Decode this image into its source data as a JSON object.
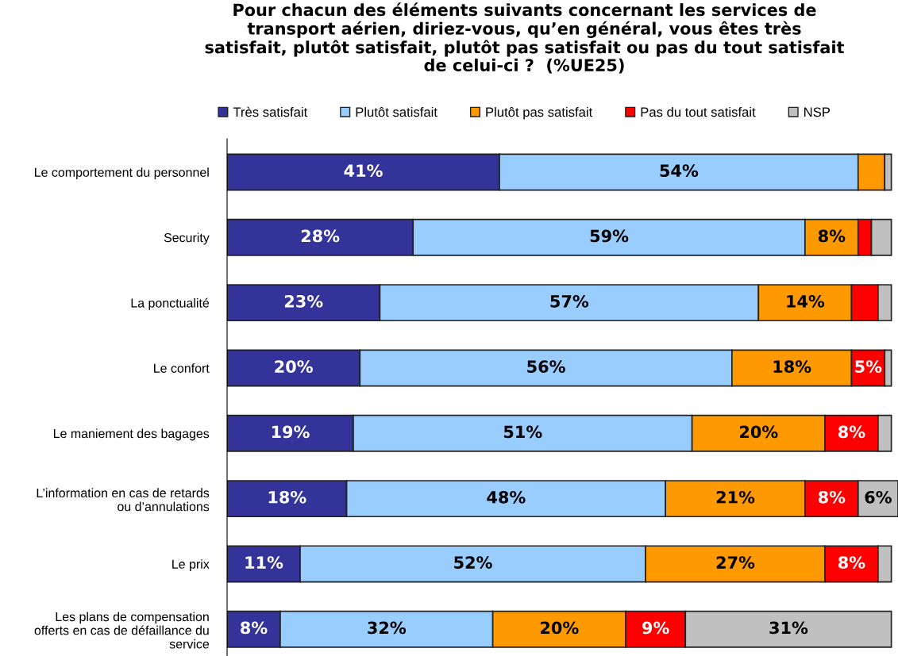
{
  "chart_data": {
    "type": "bar",
    "orientation": "horizontal",
    "stacked": true,
    "title": "Pour chacun des éléments suivants concernant les services de\ntransport aérien, diriez-vous, qu’en général, vous êtes très\nsatisfait, plutôt satisfait, plutôt pas satisfait ou pas du tout satisfait\nde celui-ci ?  (%UE25)",
    "categories": [
      "Le comportement du personnel",
      "Security",
      "La ponctualité",
      "Le confort",
      "Le maniement des bagages",
      "L’information en cas de retards\nou d’annulations",
      "Le prix",
      "Les plans de compensation\nofferts en cas de défaillance du\nservice"
    ],
    "series": [
      {
        "name": "Très satisfait",
        "color": "#333399",
        "values": [
          41,
          28,
          23,
          20,
          19,
          18,
          11,
          8
        ],
        "value_labels": [
          "41%",
          "28%",
          "23%",
          "20%",
          "19%",
          "18%",
          "11%",
          "8%"
        ]
      },
      {
        "name": "Plutôt satisfait",
        "color": "#99ccff",
        "values": [
          54,
          59,
          57,
          56,
          51,
          48,
          52,
          32
        ],
        "value_labels": [
          "54%",
          "59%",
          "57%",
          "56%",
          "51%",
          "48%",
          "52%",
          "32%"
        ]
      },
      {
        "name": "Plutôt pas satisfait",
        "color": "#ff9900",
        "values": [
          4,
          8,
          14,
          18,
          20,
          21,
          27,
          20
        ],
        "value_labels": [
          null,
          "8%",
          "14%",
          "18%",
          "20%",
          "21%",
          "27%",
          "20%"
        ]
      },
      {
        "name": "Pas du tout satisfait",
        "color": "#ff0000",
        "values": [
          0,
          2,
          4,
          5,
          8,
          8,
          8,
          9
        ],
        "value_labels": [
          null,
          null,
          null,
          "5%",
          "8%",
          "8%",
          "8%",
          "9%"
        ]
      },
      {
        "name": "NSP",
        "color": "#c0c0c0",
        "values": [
          1,
          3,
          2,
          1,
          2,
          6,
          2,
          31
        ],
        "value_labels": [
          null,
          null,
          null,
          null,
          null,
          "6%",
          null,
          "31%"
        ]
      }
    ],
    "xlim": [
      0,
      101
    ],
    "tick_labels": "y",
    "legend": "top",
    "grid": false
  }
}
